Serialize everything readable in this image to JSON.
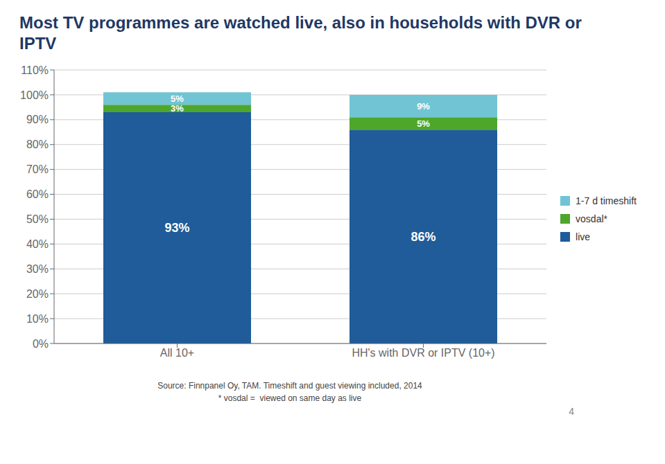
{
  "chart_data": {
    "type": "bar",
    "stacked": true,
    "title": "Most TV programmes are watched live, also in households with DVR or IPTV",
    "categories": [
      "All  10+",
      "HH's with DVR or IPTV (10+)"
    ],
    "series": [
      {
        "name": "live",
        "color": "#1F5C99",
        "values": [
          93,
          86
        ],
        "value_labels": [
          "93%",
          "86%"
        ]
      },
      {
        "name": "vosdal*",
        "color": "#4EA72A",
        "values": [
          3,
          5
        ],
        "value_labels": [
          "3%",
          "5%"
        ]
      },
      {
        "name": "1-7 d timeshift",
        "color": "#70C4D4",
        "values": [
          5,
          9
        ],
        "value_labels": [
          "5%",
          "9%"
        ]
      }
    ],
    "ylim": [
      0,
      110
    ],
    "yticks": [
      {
        "value": 0,
        "label": "0%"
      },
      {
        "value": 10,
        "label": "10%"
      },
      {
        "value": 20,
        "label": "20%"
      },
      {
        "value": 30,
        "label": "30%"
      },
      {
        "value": 40,
        "label": "40%"
      },
      {
        "value": 50,
        "label": "50%"
      },
      {
        "value": 60,
        "label": "60%"
      },
      {
        "value": 70,
        "label": "70%"
      },
      {
        "value": 80,
        "label": "80%"
      },
      {
        "value": 90,
        "label": "90%"
      },
      {
        "value": 100,
        "label": "100%"
      },
      {
        "value": 110,
        "label": "110%"
      }
    ],
    "grid": true,
    "data_labels": true,
    "legend": "right",
    "annotations": [
      "Source: Finnpanel Oy, TAM. Timeshift and guest viewing included, 2014",
      "* vosdal =  viewed on same day as live",
      "4"
    ]
  }
}
